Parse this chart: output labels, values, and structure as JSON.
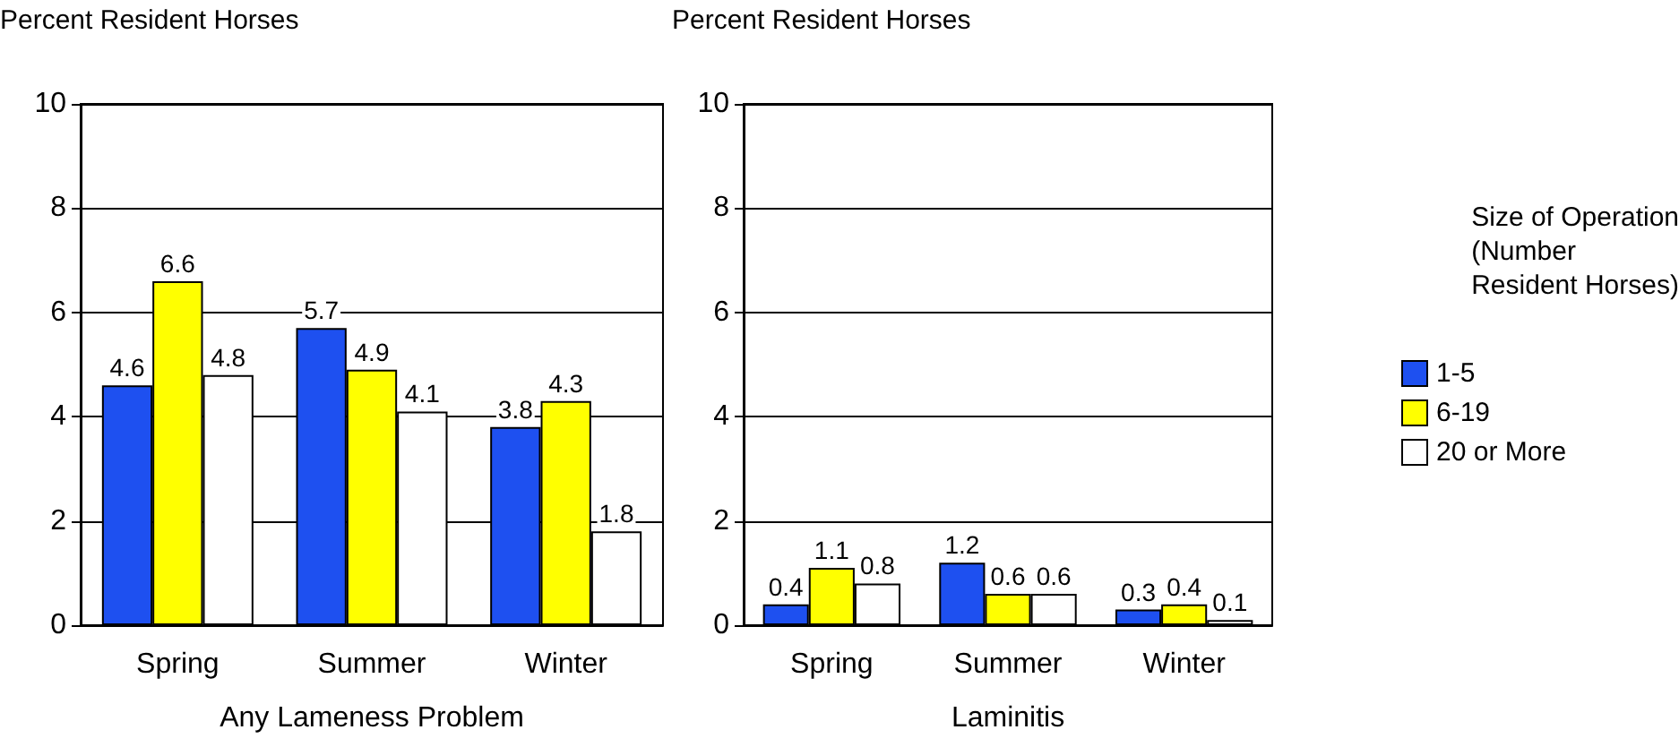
{
  "chart_data": [
    {
      "type": "bar",
      "ylabel": "Percent Resident Horses",
      "xlabel": "Any Lameness Problem",
      "categories": [
        "Spring",
        "Summer",
        "Winter"
      ],
      "series": [
        {
          "color": "#1e50f0",
          "values": [
            4.6,
            5.7,
            3.8
          ]
        },
        {
          "color": "#ffff00",
          "values": [
            6.6,
            4.9,
            4.3
          ]
        },
        {
          "color": "#ffffff",
          "values": [
            4.8,
            4.1,
            1.8
          ]
        }
      ],
      "ylim": [
        0,
        10
      ],
      "yticks": [
        0,
        2,
        4,
        6,
        8,
        10
      ],
      "grid": "y",
      "data_labels": true,
      "legend": false
    },
    {
      "type": "bar",
      "ylabel": "Percent Resident Horses",
      "xlabel": "Laminitis",
      "categories": [
        "Spring",
        "Summer",
        "Winter"
      ],
      "series": [
        {
          "name": "1-5",
          "color": "#1e50f0",
          "values": [
            0.4,
            1.2,
            0.3
          ]
        },
        {
          "name": "6-19",
          "color": "#ffff00",
          "values": [
            1.1,
            0.6,
            0.4
          ]
        },
        {
          "name": "20 or More",
          "color": "#ffffff",
          "values": [
            0.8,
            0.6,
            0.1
          ]
        }
      ],
      "ylim": [
        0,
        10
      ],
      "yticks": [
        0,
        2,
        4,
        6,
        8,
        10
      ],
      "grid": "y",
      "data_labels": true,
      "legend": "right",
      "legend_title": "Size of Operation\n(Number\nResident Horses)"
    }
  ]
}
